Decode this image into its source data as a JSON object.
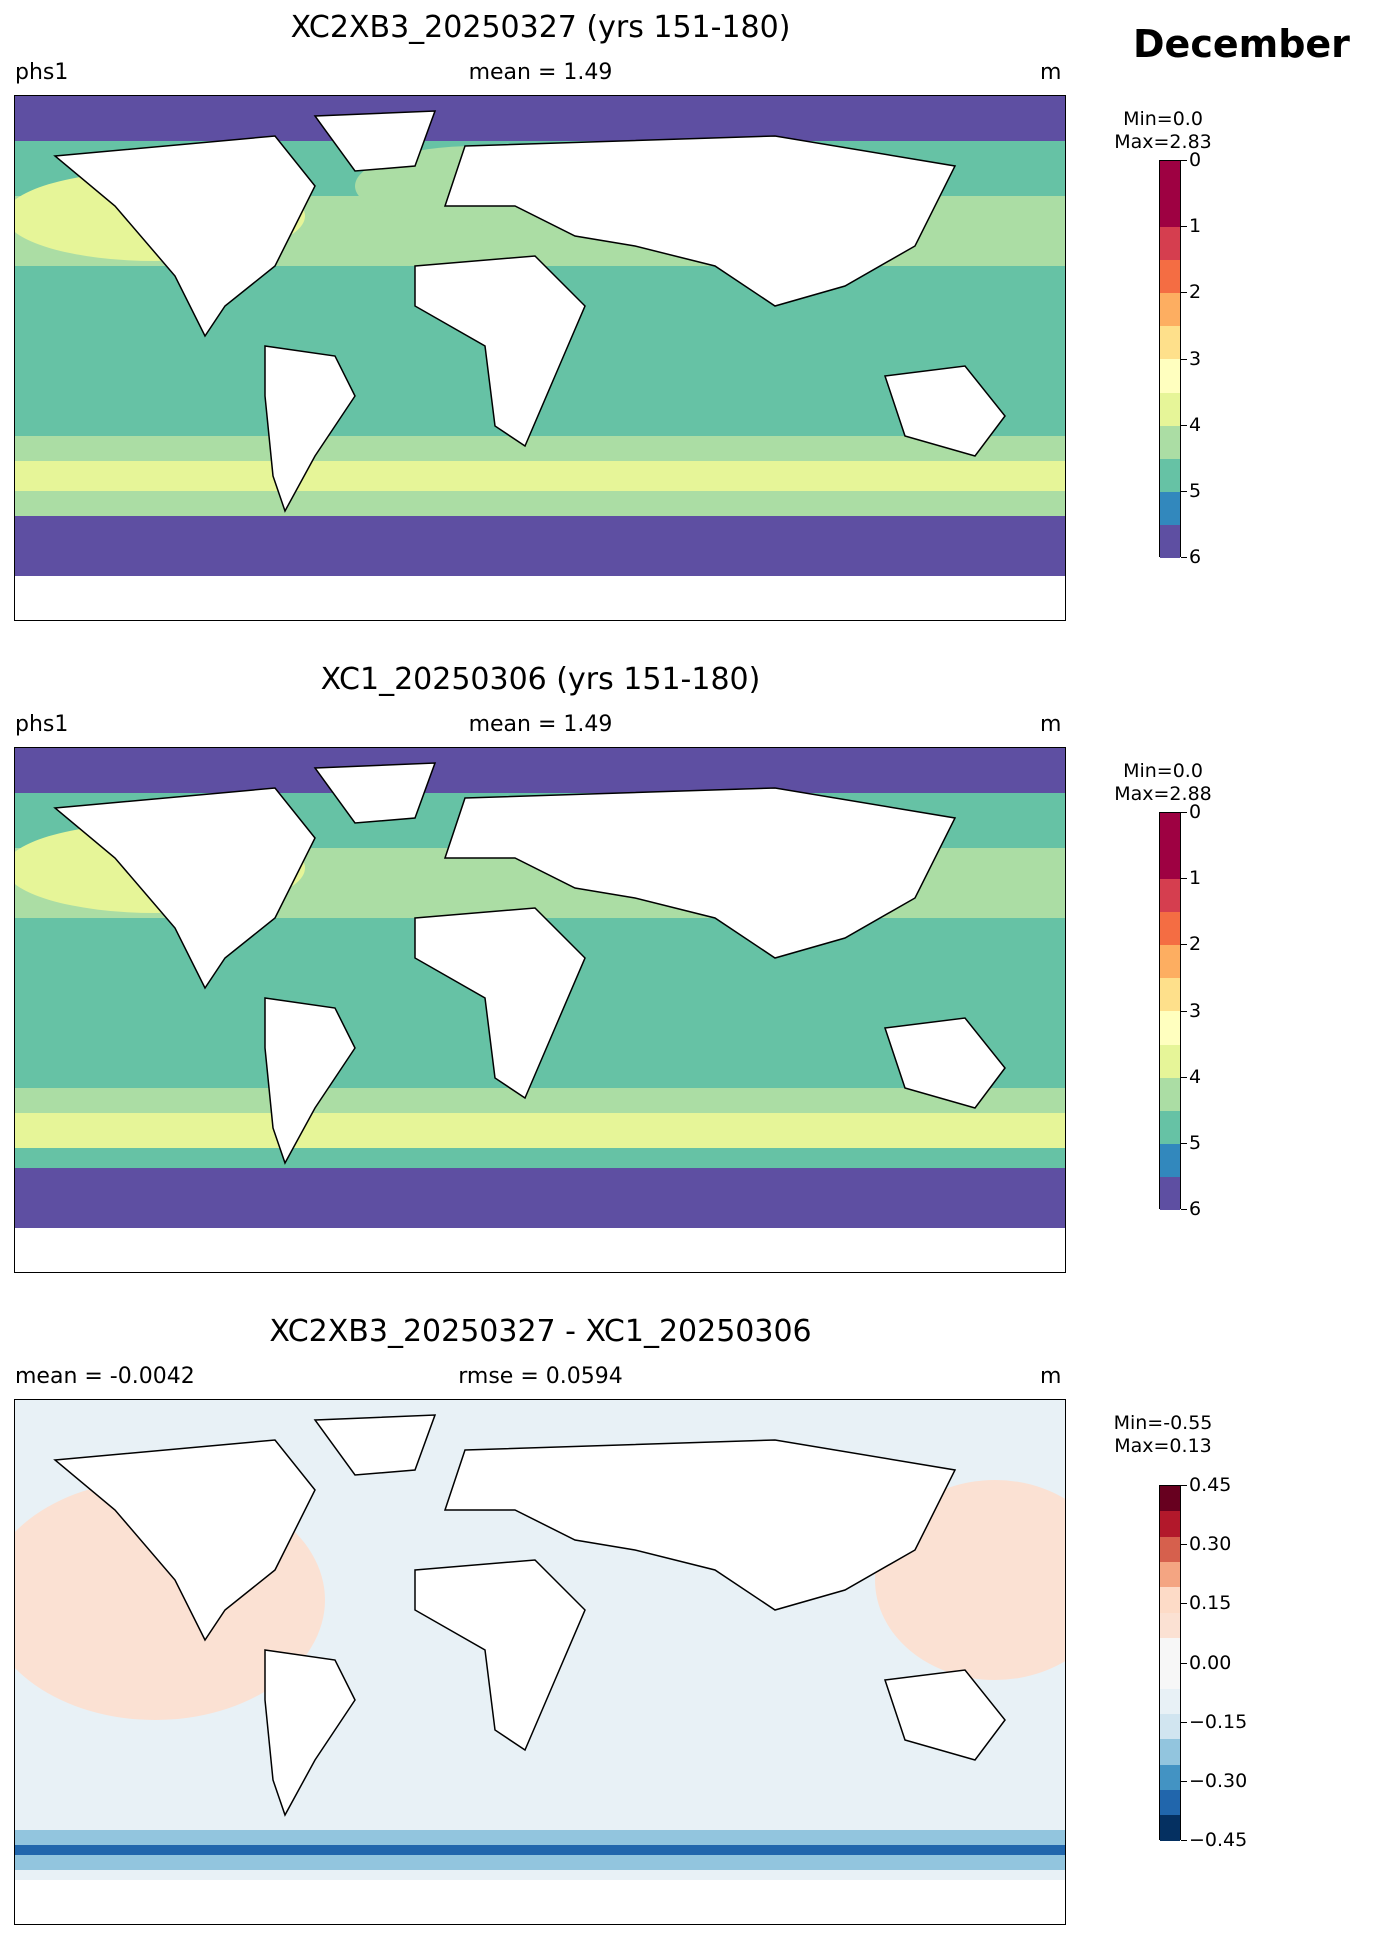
{
  "month": "December",
  "panels": [
    {
      "title": "XC2XB3_20250327 (yrs 151-180)",
      "left_label": "phs1",
      "center_label": "mean = 1.49",
      "right_label": "m",
      "colorbar": {
        "min_text": "Min=0.0",
        "max_text": "Max=2.83",
        "levels": [
          0,
          0.5,
          1,
          1.5,
          2,
          2.5,
          3,
          3.5,
          4,
          4.5,
          5,
          5.5,
          6
        ],
        "tick_labels": [
          "0",
          "1",
          "2",
          "3",
          "4",
          "5",
          "6"
        ],
        "colors": [
          "#5e4fa2",
          "#3288bd",
          "#66c2a5",
          "#abdda4",
          "#e6f598",
          "#ffffbf",
          "#fee08b",
          "#fdae61",
          "#f46d43",
          "#d53e4f",
          "#9e0142",
          "#9e0142"
        ]
      }
    },
    {
      "title": "XC1_20250306 (yrs 151-180)",
      "left_label": "phs1",
      "center_label": "mean = 1.49",
      "right_label": "m",
      "colorbar": {
        "min_text": "Min=0.0",
        "max_text": "Max=2.88",
        "levels": [
          0,
          0.5,
          1,
          1.5,
          2,
          2.5,
          3,
          3.5,
          4,
          4.5,
          5,
          5.5,
          6
        ],
        "tick_labels": [
          "0",
          "1",
          "2",
          "3",
          "4",
          "5",
          "6"
        ],
        "colors": [
          "#5e4fa2",
          "#3288bd",
          "#66c2a5",
          "#abdda4",
          "#e6f598",
          "#ffffbf",
          "#fee08b",
          "#fdae61",
          "#f46d43",
          "#d53e4f",
          "#9e0142",
          "#9e0142"
        ]
      }
    },
    {
      "title": "XC2XB3_20250327 - XC1_20250306",
      "left_label": "mean = -0.0042",
      "center_label": "rmse = 0.0594",
      "right_label": "m",
      "colorbar": {
        "min_text": "Min=-0.55",
        "max_text": "Max=0.13",
        "levels": [
          -0.525,
          -0.45,
          -0.375,
          -0.3,
          -0.225,
          -0.15,
          -0.075,
          0,
          0.075,
          0.15,
          0.225,
          0.3,
          0.375,
          0.45,
          0.525
        ],
        "tick_labels": [
          "0.45",
          "0.30",
          "0.15",
          "0.00",
          "−0.15",
          "−0.30",
          "−0.45"
        ],
        "colors": [
          "#053061",
          "#2166ac",
          "#4393c3",
          "#92c5de",
          "#d1e5f0",
          "#e8f1f6",
          "#f7f7f7",
          "#f7f7f7",
          "#fbe1d3",
          "#fddbc7",
          "#f4a582",
          "#d6604d",
          "#b2182b",
          "#67001f"
        ]
      }
    }
  ]
}
